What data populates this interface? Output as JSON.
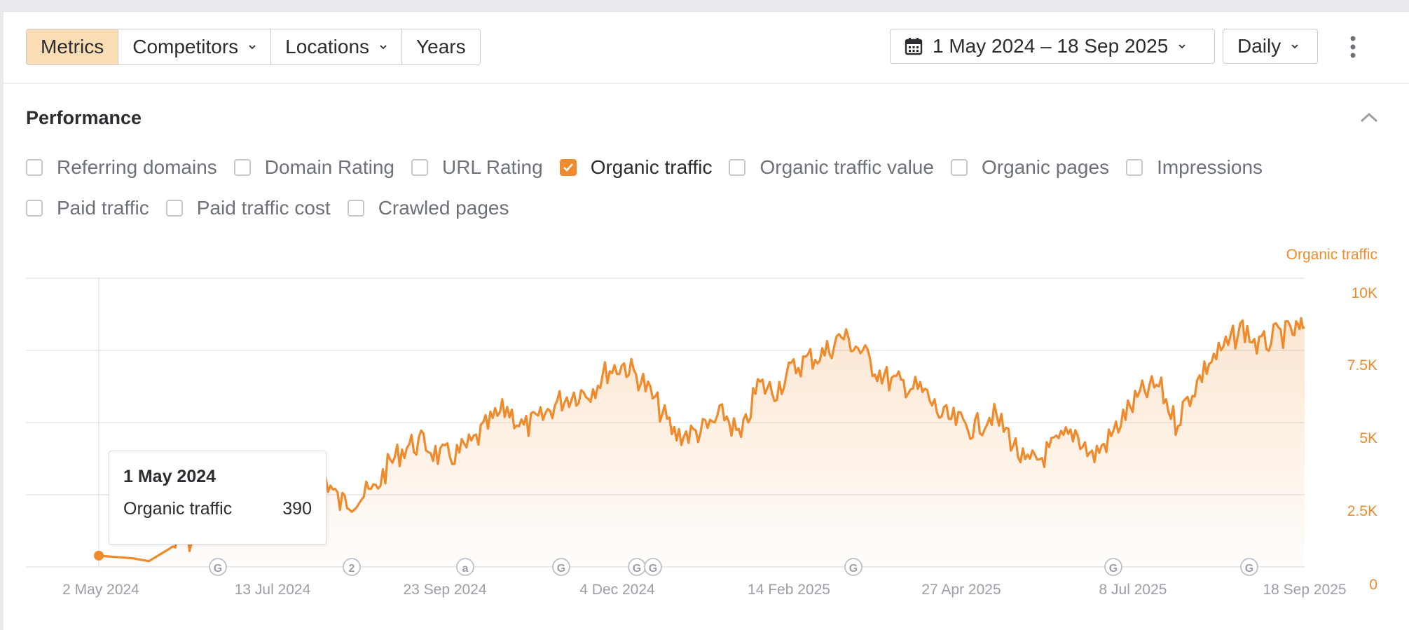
{
  "toolbar": {
    "segments": [
      {
        "label": "Metrics",
        "active": true,
        "dropdown": false
      },
      {
        "label": "Competitors",
        "active": false,
        "dropdown": true
      },
      {
        "label": "Locations",
        "active": false,
        "dropdown": true
      },
      {
        "label": "Years",
        "active": false,
        "dropdown": false
      }
    ],
    "date_range": "1 May 2024 – 18 Sep 2025",
    "granularity": "Daily"
  },
  "performance": {
    "title": "Performance",
    "metrics_row1": [
      {
        "label": "Referring domains",
        "checked": false
      },
      {
        "label": "Domain Rating",
        "checked": false
      },
      {
        "label": "URL Rating",
        "checked": false
      },
      {
        "label": "Organic traffic",
        "checked": true
      },
      {
        "label": "Organic traffic value",
        "checked": false
      },
      {
        "label": "Organic pages",
        "checked": false
      },
      {
        "label": "Impressions",
        "checked": false
      }
    ],
    "metrics_row2": [
      {
        "label": "Paid traffic",
        "checked": false
      },
      {
        "label": "Paid traffic cost",
        "checked": false
      },
      {
        "label": "Crawled pages",
        "checked": false
      }
    ]
  },
  "tooltip": {
    "date": "1 May 2024",
    "label": "Organic traffic",
    "value": "390"
  },
  "colors": {
    "accent": "#ef8b2c",
    "accent_light": "#fbddb5",
    "grid": "#e4e6e9",
    "axis_text": "#9b9ea4"
  },
  "chart_data": {
    "type": "area",
    "series": [
      {
        "name": "Organic traffic",
        "x": [
          "2024-05-01",
          "2024-05-15",
          "2024-05-22",
          "2024-06-01",
          "2024-06-08",
          "2024-06-15",
          "2024-06-22",
          "2024-06-29",
          "2024-07-06",
          "2024-07-13",
          "2024-07-20",
          "2024-07-27",
          "2024-08-03",
          "2024-08-10",
          "2024-08-17",
          "2024-08-24",
          "2024-08-31",
          "2024-09-07",
          "2024-09-14",
          "2024-09-21",
          "2024-09-28",
          "2024-10-05",
          "2024-10-12",
          "2024-10-19",
          "2024-10-26",
          "2024-11-02",
          "2024-11-09",
          "2024-11-16",
          "2024-11-23",
          "2024-11-30",
          "2024-12-07",
          "2024-12-14",
          "2024-12-21",
          "2024-12-28",
          "2025-01-04",
          "2025-01-11",
          "2025-01-18",
          "2025-01-25",
          "2025-02-01",
          "2025-02-08",
          "2025-02-15",
          "2025-02-22",
          "2025-03-01",
          "2025-03-08",
          "2025-03-15",
          "2025-03-22",
          "2025-03-29",
          "2025-04-05",
          "2025-04-12",
          "2025-04-19",
          "2025-04-26",
          "2025-05-03",
          "2025-05-10",
          "2025-05-17",
          "2025-05-24",
          "2025-05-31",
          "2025-06-07",
          "2025-06-14",
          "2025-06-21",
          "2025-06-28",
          "2025-07-05",
          "2025-07-12",
          "2025-07-19",
          "2025-07-26",
          "2025-08-02",
          "2025-08-09",
          "2025-08-16",
          "2025-08-23",
          "2025-08-30",
          "2025-09-06",
          "2025-09-13",
          "2025-09-18"
        ],
        "values": [
          390,
          300,
          200,
          700,
          900,
          1200,
          1600,
          2500,
          2900,
          2000,
          2700,
          3100,
          3200,
          2200,
          2400,
          2600,
          3600,
          4200,
          4300,
          3800,
          3900,
          4300,
          5000,
          5500,
          4800,
          5100,
          5700,
          6000,
          6100,
          6800,
          7000,
          6500,
          5600,
          4600,
          4600,
          4800,
          5300,
          4400,
          6300,
          6100,
          6800,
          7200,
          7400,
          8000,
          7600,
          6900,
          6400,
          6300,
          6000,
          5200,
          5000,
          4800,
          5300,
          4600,
          3500,
          3800,
          4300,
          4700,
          3800,
          4400,
          5300,
          6000,
          6300,
          5000,
          6100,
          7100,
          7600,
          8300,
          7600,
          8000,
          8100,
          8300
        ]
      }
    ],
    "x_tick_labels": [
      "2 May 2024",
      "13 Jul 2024",
      "23 Sep 2024",
      "4 Dec 2024",
      "14 Feb 2025",
      "27 Apr 2025",
      "8 Jul 2025",
      "18 Sep 2025"
    ],
    "y_tick_labels": [
      "10K",
      "7.5K",
      "5K",
      "2.5K",
      "0"
    ],
    "ylim": [
      0,
      10000
    ],
    "ylabel": "Organic traffic",
    "grid": true,
    "annotation_markers": [
      "G",
      "2",
      "a",
      "G",
      "G",
      "G",
      "G",
      "G",
      "G"
    ]
  }
}
